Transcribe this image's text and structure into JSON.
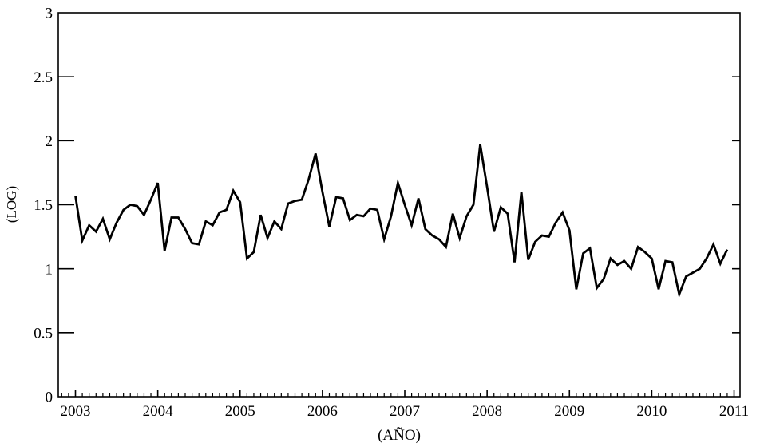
{
  "page": {
    "background_color": "#ffffff",
    "foreground_color": "#000000"
  },
  "chart_data": {
    "type": "line",
    "title": "",
    "xlabel": "(AÑO)",
    "ylabel": "(LOG)",
    "x_tick_labels": [
      "2003",
      "2004",
      "2005",
      "2006",
      "2007",
      "2008",
      "2009",
      "2010",
      "2011"
    ],
    "y_ticks": [
      0,
      0.5,
      1,
      1.5,
      2,
      2.5,
      3
    ],
    "y_tick_labels": [
      "0",
      "0.5",
      "1",
      "1.5",
      "2",
      "2.5",
      "3"
    ],
    "ylim": [
      0,
      3
    ],
    "xlim_years": [
      2003,
      2011
    ],
    "grid": "off",
    "legend": "none",
    "frame": "box",
    "minor_tick_unit": "month",
    "line_color": "#000000",
    "background_color": "#ffffff",
    "series": [
      {
        "name": "monthly-log-series",
        "start_month": "2003-01",
        "end_month": "2010-12",
        "frequency": "monthly",
        "values": [
          1.57,
          1.22,
          1.34,
          1.29,
          1.39,
          1.23,
          1.36,
          1.46,
          1.5,
          1.49,
          1.42,
          1.54,
          1.67,
          1.14,
          1.4,
          1.4,
          1.31,
          1.2,
          1.19,
          1.37,
          1.34,
          1.44,
          1.46,
          1.61,
          1.52,
          1.08,
          1.13,
          1.42,
          1.24,
          1.37,
          1.31,
          1.51,
          1.53,
          1.54,
          1.7,
          1.9,
          1.6,
          1.33,
          1.56,
          1.55,
          1.38,
          1.42,
          1.41,
          1.47,
          1.46,
          1.23,
          1.41,
          1.67,
          1.5,
          1.34,
          1.55,
          1.31,
          1.26,
          1.23,
          1.17,
          1.43,
          1.24,
          1.41,
          1.5,
          1.97,
          1.64,
          1.29,
          1.48,
          1.43,
          1.05,
          1.6,
          1.07,
          1.21,
          1.26,
          1.25,
          1.36,
          1.44,
          1.3,
          0.84,
          1.12,
          1.16,
          0.85,
          0.92,
          1.08,
          1.03,
          1.06,
          1.0,
          1.17,
          1.13,
          1.08,
          0.84,
          1.06,
          1.05,
          0.8,
          0.94,
          0.97,
          1.0,
          1.08,
          1.19,
          1.04,
          1.15
        ]
      }
    ]
  }
}
